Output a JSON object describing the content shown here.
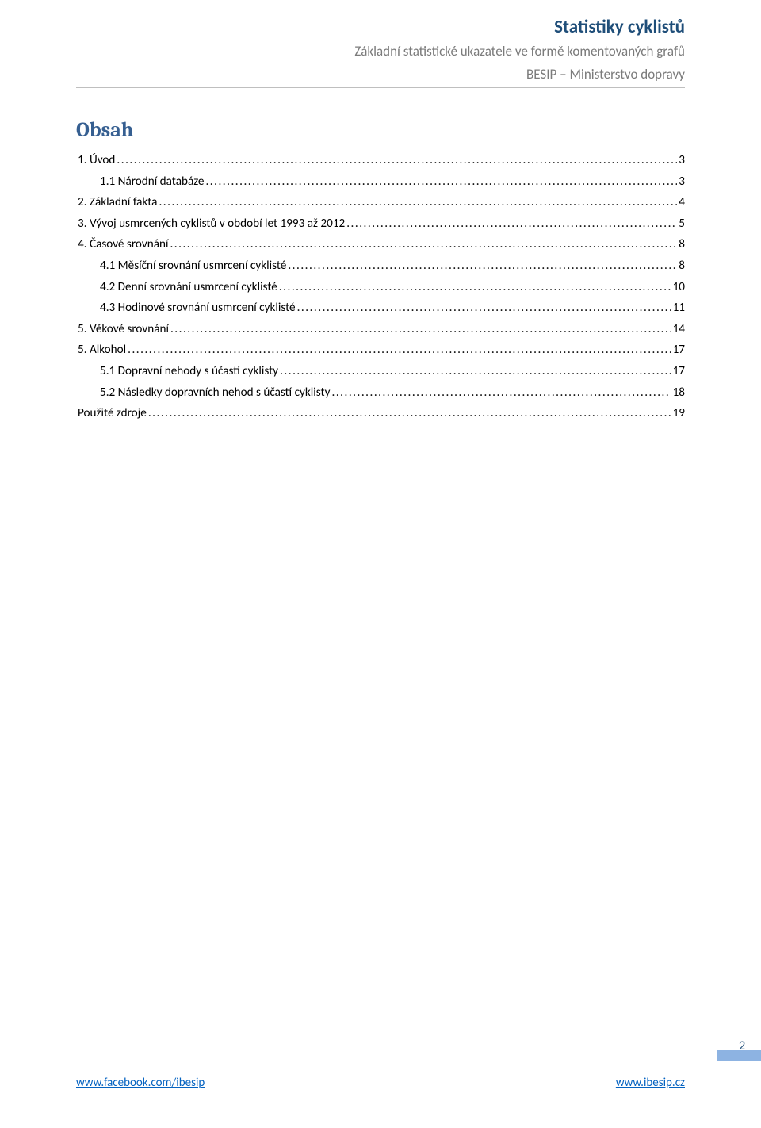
{
  "header": {
    "title": "Statistiky cyklistů",
    "subtitle": "Základní statistické ukazatele ve formě komentovaných grafů",
    "org": "BESIP – Ministerstvo dopravy",
    "title_color": "#1f4e79",
    "sub_color": "#7b7b7b",
    "rule_color": "#bfbfbf"
  },
  "toc": {
    "heading": "Obsah",
    "heading_color": "#365f91",
    "entries": [
      {
        "label": "1. Úvod",
        "page": "3",
        "indent": false
      },
      {
        "label": "1.1 Národní databáze",
        "page": "3",
        "indent": true
      },
      {
        "label": "2. Základní fakta",
        "page": "4",
        "indent": false
      },
      {
        "label": "3. Vývoj usmrcených cyklistů v období let 1993 až 2012",
        "page": "5",
        "indent": false
      },
      {
        "label": "4. Časové srovnání",
        "page": "8",
        "indent": false
      },
      {
        "label": "4.1 Měsíční srovnání usmrcení cyklisté",
        "page": "8",
        "indent": true
      },
      {
        "label": "4.2 Denní srovnání usmrcení cyklisté",
        "page": "10",
        "indent": true
      },
      {
        "label": "4.3 Hodinové srovnání usmrcení cyklisté",
        "page": "11",
        "indent": true
      },
      {
        "label": "5. Věkové srovnání",
        "page": "14",
        "indent": false
      },
      {
        "label": "5. Alkohol",
        "page": "17",
        "indent": false
      },
      {
        "label": "5.1 Dopravní nehody s účastí cyklisty",
        "page": "17",
        "indent": true
      },
      {
        "label": "5.2 Následky dopravních nehod s účastí cyklisty",
        "page": "18",
        "indent": true
      },
      {
        "label": "Použité zdroje",
        "page": "19",
        "indent": false
      }
    ]
  },
  "footer": {
    "left_link": "www.facebook.com/ibesip",
    "right_link": "www.ibesip.cz",
    "link_color": "#0563c1",
    "page_number": "2",
    "page_number_color": "#1f4e79",
    "page_bar_color": "#8db3e2"
  }
}
